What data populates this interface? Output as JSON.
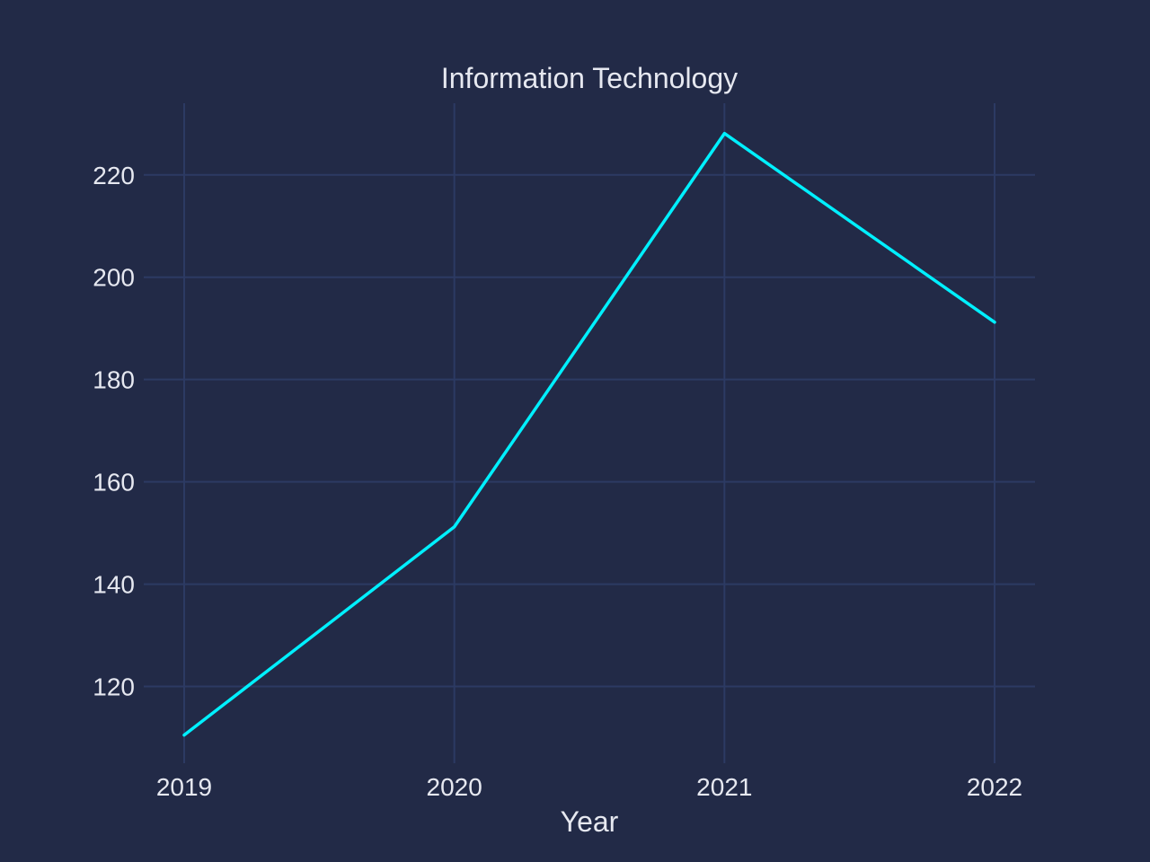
{
  "chart_data": {
    "type": "line",
    "title": "Information Technology",
    "xlabel": "Year",
    "ylabel": "",
    "x": [
      "2019",
      "2020",
      "2021",
      "2022"
    ],
    "series": [
      {
        "name": "Information Technology",
        "values": [
          110.5,
          151.2,
          228.1,
          191.2
        ]
      }
    ],
    "ylim": [
      105,
      234
    ],
    "yticks": [
      120,
      140,
      160,
      180,
      200,
      220
    ],
    "grid": true,
    "legend": "none",
    "colors": {
      "background": "#222a47",
      "grid": "#2c3a63",
      "line": "#00f0ff",
      "text": "#e6e8f0"
    }
  }
}
